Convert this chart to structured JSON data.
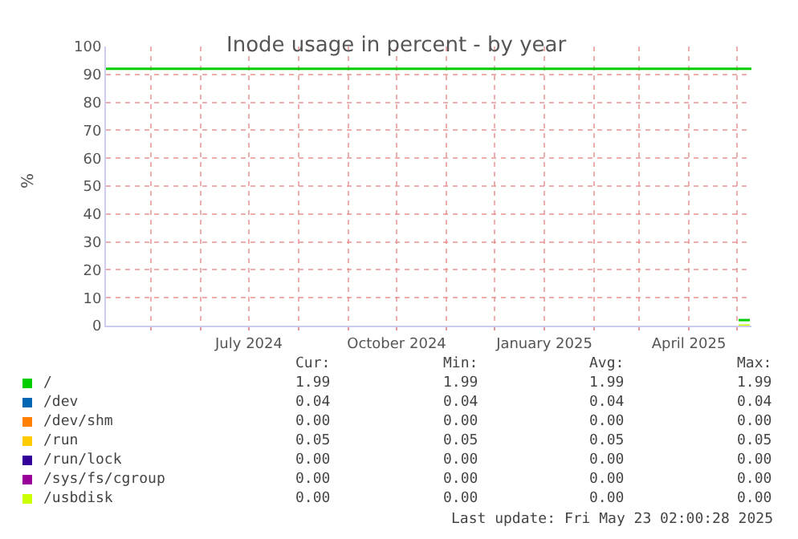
{
  "chart_data": {
    "type": "line",
    "title": "Inode usage in percent - by year",
    "ylabel": "%",
    "x": [
      "2025-05-02",
      "2025-05-09"
    ],
    "xlim": [
      "2024-04-03",
      "2025-05-10"
    ],
    "xticks": [
      {
        "value": "2024-05-01",
        "label": null
      },
      {
        "value": "2024-06-01",
        "label": null
      },
      {
        "value": "2024-07-01",
        "label": "July 2024"
      },
      {
        "value": "2024-08-01",
        "label": null
      },
      {
        "value": "2024-09-01",
        "label": null
      },
      {
        "value": "2024-10-01",
        "label": "October 2024"
      },
      {
        "value": "2024-11-01",
        "label": null
      },
      {
        "value": "2024-12-01",
        "label": null
      },
      {
        "value": "2025-01-01",
        "label": "January 2025"
      },
      {
        "value": "2025-02-01",
        "label": null
      },
      {
        "value": "2025-03-01",
        "label": null
      },
      {
        "value": "2025-04-01",
        "label": "April 2025"
      },
      {
        "value": "2025-05-01",
        "label": null
      }
    ],
    "ylim": [
      0,
      100
    ],
    "yticks": [
      0,
      10,
      20,
      30,
      40,
      50,
      60,
      70,
      80,
      90,
      100
    ],
    "grid": true,
    "legend": "bottom",
    "series": [
      {
        "name": "/",
        "color": "#00cc00",
        "values": [
          1.99,
          1.99
        ]
      },
      {
        "name": "/dev",
        "color": "#0066b3",
        "values": [
          null,
          null
        ]
      },
      {
        "name": "/dev/shm",
        "color": "#ff8000",
        "values": [
          null,
          null
        ]
      },
      {
        "name": "/run",
        "color": "#ffcc00",
        "values": [
          null,
          null
        ]
      },
      {
        "name": "/run/lock",
        "color": "#330099",
        "values": [
          null,
          null
        ]
      },
      {
        "name": "/sys/fs/cgroup",
        "color": "#990099",
        "values": [
          null,
          null
        ]
      },
      {
        "name": "/usbdisk",
        "color": "#ccff00",
        "values": [
          0,
          0
        ]
      }
    ],
    "ref_lines": [
      {
        "axis": "y",
        "value": 92,
        "color": "#00cc00"
      }
    ],
    "annotations": [
      "Cur:",
      "Min:",
      "Avg:",
      "Max:",
      "1.99",
      "1.99",
      "1.99",
      "1.99",
      "0.04",
      "0.04",
      "0.04",
      "0.04",
      "0.00",
      "0.00",
      "0.00",
      "0.00",
      "0.05",
      "0.05",
      "0.05",
      "0.05",
      "0.00",
      "0.00",
      "0.00",
      "0.00",
      "0.00",
      "0.00",
      "0.00",
      "0.00",
      "0.00",
      "0.00",
      "0.00",
      "0.00",
      "Last update: Fri May 23 02:00:28 2025"
    ]
  }
}
